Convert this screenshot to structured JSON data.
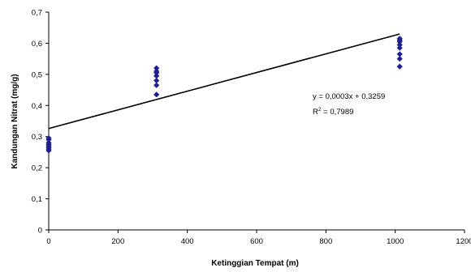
{
  "chart_data": {
    "type": "scatter",
    "title": "",
    "xlabel": "Ketinggian Tempat (m)",
    "ylabel": "Kandungan Nitrat (mg/g)",
    "xlim": [
      0,
      1200
    ],
    "ylim": [
      0,
      0.7
    ],
    "x_ticks": [
      "0",
      "200",
      "400",
      "600",
      "800",
      "1000",
      "1200"
    ],
    "y_ticks": [
      "0",
      "0,1",
      "0,2",
      "0,3",
      "0,4",
      "0,5",
      "0,6",
      "0,7"
    ],
    "grid": false,
    "marker_color": "#1f1f8f",
    "line_color": "#000000",
    "series": [
      {
        "points": [
          {
            "x": 0,
            "y": 0.255
          },
          {
            "x": 0,
            "y": 0.26
          },
          {
            "x": 0,
            "y": 0.265
          },
          {
            "x": 0,
            "y": 0.27
          },
          {
            "x": 0,
            "y": 0.275
          },
          {
            "x": 0,
            "y": 0.28
          },
          {
            "x": 0,
            "y": 0.29
          },
          {
            "x": 0,
            "y": 0.295
          },
          {
            "x": 311,
            "y": 0.435
          },
          {
            "x": 311,
            "y": 0.465
          },
          {
            "x": 311,
            "y": 0.48
          },
          {
            "x": 311,
            "y": 0.495
          },
          {
            "x": 311,
            "y": 0.505
          },
          {
            "x": 311,
            "y": 0.51
          },
          {
            "x": 311,
            "y": 0.52
          },
          {
            "x": 1013,
            "y": 0.525
          },
          {
            "x": 1013,
            "y": 0.55
          },
          {
            "x": 1013,
            "y": 0.565
          },
          {
            "x": 1013,
            "y": 0.585
          },
          {
            "x": 1013,
            "y": 0.595
          },
          {
            "x": 1013,
            "y": 0.605
          },
          {
            "x": 1013,
            "y": 0.61
          },
          {
            "x": 1013,
            "y": 0.615
          }
        ]
      }
    ],
    "trendline": {
      "slope": 0.0003,
      "intercept": 0.3259,
      "x_range": [
        0,
        1013
      ]
    },
    "annotations": {
      "equation": "y = 0,0003x + 0,3259",
      "r2_prefix": "R",
      "r2_sup": "2",
      "r2_value": " = 0,7989"
    }
  }
}
